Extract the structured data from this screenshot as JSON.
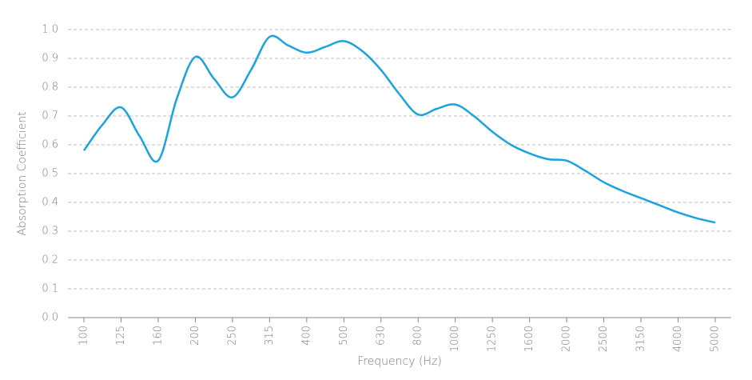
{
  "chart_data": {
    "type": "line",
    "x_label": "Frequency (Hz)",
    "y_label": "Absorption Coefficient",
    "categories": [
      "100",
      null,
      "125",
      null,
      "160",
      null,
      "200",
      null,
      "250",
      null,
      "315",
      null,
      "400",
      null,
      "500",
      null,
      "630",
      null,
      "800",
      null,
      "1000",
      null,
      "1250",
      null,
      "1600",
      null,
      "2000",
      null,
      "2500",
      null,
      "3150",
      null,
      "4000",
      null,
      "5000"
    ],
    "values": [
      0.58,
      0.67,
      0.73,
      0.63,
      0.545,
      0.76,
      0.905,
      0.83,
      0.765,
      0.86,
      0.975,
      0.945,
      0.92,
      0.94,
      0.96,
      0.925,
      0.86,
      0.775,
      0.705,
      0.725,
      0.74,
      0.7,
      0.645,
      0.6,
      0.57,
      0.55,
      0.545,
      0.51,
      0.47,
      0.44,
      0.415,
      0.39,
      0.365,
      0.345,
      0.33
    ],
    "color": "#1aa3df",
    "ylim": [
      0,
      1
    ],
    "yticks": [
      {
        "value": 0,
        "label": "0.0"
      },
      0.1,
      0.2,
      0.3,
      0.4,
      0.5,
      0.6,
      0.7,
      0.8,
      0.9,
      {
        "value": 1,
        "label": "1.0"
      }
    ],
    "grid": true
  }
}
